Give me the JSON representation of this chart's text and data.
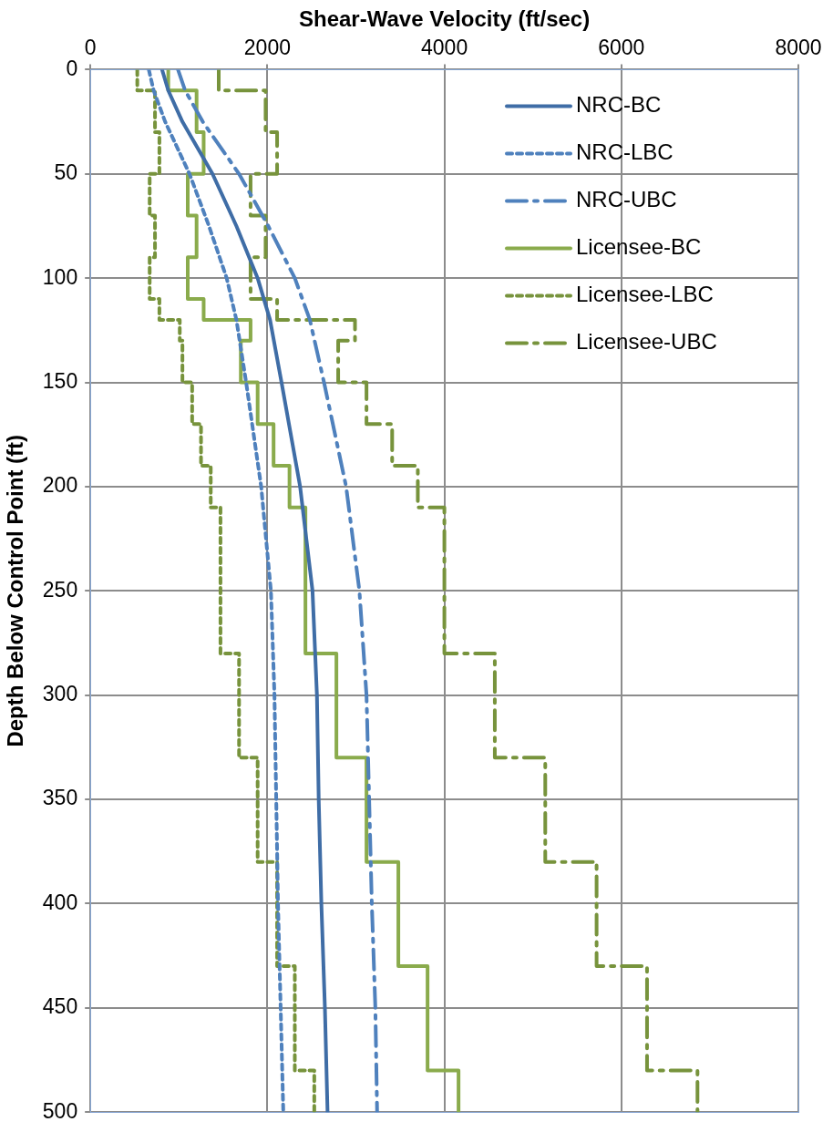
{
  "chart_data": {
    "type": "line",
    "xlabel": "Shear-Wave Velocity (ft/sec)",
    "ylabel": "Depth Below Control Point (ft)",
    "xlim": [
      0,
      8000
    ],
    "xticks": [
      0,
      2000,
      4000,
      6000,
      8000
    ],
    "ylim": [
      500,
      0
    ],
    "yticks": [
      0,
      50,
      100,
      150,
      200,
      250,
      300,
      350,
      400,
      450,
      500
    ],
    "grid": true,
    "legend": "top right",
    "marker": "none",
    "series": [
      {
        "name": "NRC-BC",
        "color": "#3f6da6",
        "line_style": "solid",
        "x": [
          810,
          880,
          1040,
          1380,
          1650,
          1890,
          2030,
          2160,
          2370,
          2510,
          2560,
          2580,
          2610,
          2650,
          2680
        ],
        "values": [
          0,
          10,
          25,
          50,
          75,
          100,
          120,
          150,
          200,
          250,
          300,
          350,
          400,
          450,
          500
        ]
      },
      {
        "name": "NRC-LBC",
        "color": "#4f81bd",
        "line_style": "dotted",
        "x": [
          660,
          715,
          845,
          1120,
          1340,
          1540,
          1650,
          1760,
          1930,
          2040,
          2080,
          2100,
          2120,
          2150,
          2180
        ],
        "values": [
          0,
          10,
          25,
          50,
          75,
          100,
          120,
          150,
          200,
          250,
          300,
          350,
          400,
          450,
          500
        ]
      },
      {
        "name": "NRC-UBC",
        "color": "#4f81bd",
        "line_style": "dashed",
        "x": [
          990,
          1070,
          1270,
          1680,
          2010,
          2310,
          2480,
          2640,
          2890,
          3040,
          3120,
          3150,
          3180,
          3220,
          3240
        ],
        "values": [
          0,
          10,
          25,
          50,
          75,
          100,
          120,
          150,
          200,
          250,
          300,
          350,
          400,
          450,
          500
        ]
      },
      {
        "name": "Licensee-BC",
        "color": "#8aab4c",
        "line_style": "solid",
        "x": [
          880,
          880,
          1200,
          1200,
          1280,
          1280,
          1100,
          1100,
          1200,
          1200,
          1100,
          1100,
          1280,
          1280,
          1810,
          1810,
          1700,
          1700,
          1890,
          1890,
          2070,
          2070,
          2250,
          2250,
          2430,
          2430,
          2780,
          2780,
          3120,
          3120,
          3480,
          3480,
          3810,
          3810,
          4160,
          4160
        ],
        "values": [
          0,
          10,
          10,
          30,
          30,
          50,
          50,
          70,
          70,
          90,
          90,
          110,
          110,
          120,
          120,
          130,
          130,
          150,
          150,
          170,
          170,
          190,
          190,
          210,
          210,
          280,
          280,
          330,
          330,
          380,
          380,
          430,
          430,
          480,
          480,
          500
        ]
      },
      {
        "name": "Licensee-LBC",
        "color": "#77933c",
        "line_style": "dotted",
        "x": [
          530,
          530,
          730,
          730,
          780,
          780,
          670,
          670,
          730,
          730,
          670,
          670,
          780,
          780,
          1010,
          1010,
          1040,
          1040,
          1150,
          1150,
          1250,
          1250,
          1360,
          1360,
          1470,
          1470,
          1680,
          1680,
          1890,
          1890,
          2110,
          2110,
          2310,
          2310,
          2530,
          2530
        ],
        "values": [
          0,
          10,
          10,
          30,
          30,
          50,
          50,
          70,
          70,
          90,
          90,
          110,
          110,
          120,
          120,
          130,
          130,
          150,
          150,
          170,
          170,
          190,
          190,
          210,
          210,
          280,
          280,
          330,
          330,
          380,
          380,
          430,
          430,
          480,
          480,
          500
        ]
      },
      {
        "name": "Licensee-UBC",
        "color": "#77933c",
        "line_style": "dashed",
        "x": [
          1450,
          1450,
          1980,
          1980,
          2110,
          2110,
          1810,
          1810,
          1980,
          1980,
          1810,
          1810,
          2110,
          2110,
          2990,
          2990,
          2800,
          2800,
          3120,
          3120,
          3410,
          3410,
          3700,
          3700,
          4000,
          4000,
          4570,
          4570,
          5140,
          5140,
          5720,
          5720,
          6290,
          6290,
          6860,
          6860
        ],
        "values": [
          0,
          10,
          10,
          30,
          30,
          50,
          50,
          70,
          70,
          90,
          90,
          110,
          110,
          120,
          120,
          130,
          130,
          150,
          150,
          170,
          170,
          190,
          190,
          210,
          210,
          280,
          280,
          330,
          330,
          380,
          380,
          430,
          430,
          480,
          480,
          500
        ]
      }
    ]
  }
}
